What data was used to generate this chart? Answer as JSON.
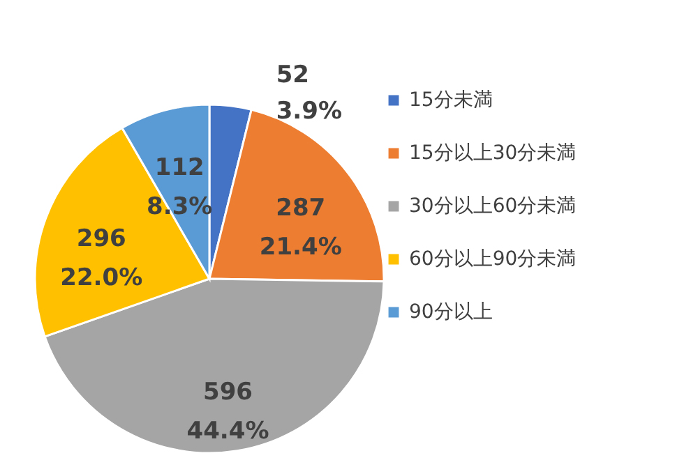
{
  "chart_data": {
    "type": "pie",
    "categories": [
      "15分未満",
      "15分以上30分未満",
      "30分以上60分未満",
      "60分以上90分未満",
      "90分以上"
    ],
    "values": [
      52,
      287,
      596,
      296,
      112
    ],
    "colors": [
      "#4472c4",
      "#ed7d31",
      "#a5a5a5",
      "#ffc000",
      "#5b9bd5"
    ],
    "value_labels": [
      "52\n3.9%",
      "287\n21.4%",
      "596\n44.4%",
      "296\n22.0%",
      "112\n8.3%"
    ],
    "legend": "right"
  }
}
